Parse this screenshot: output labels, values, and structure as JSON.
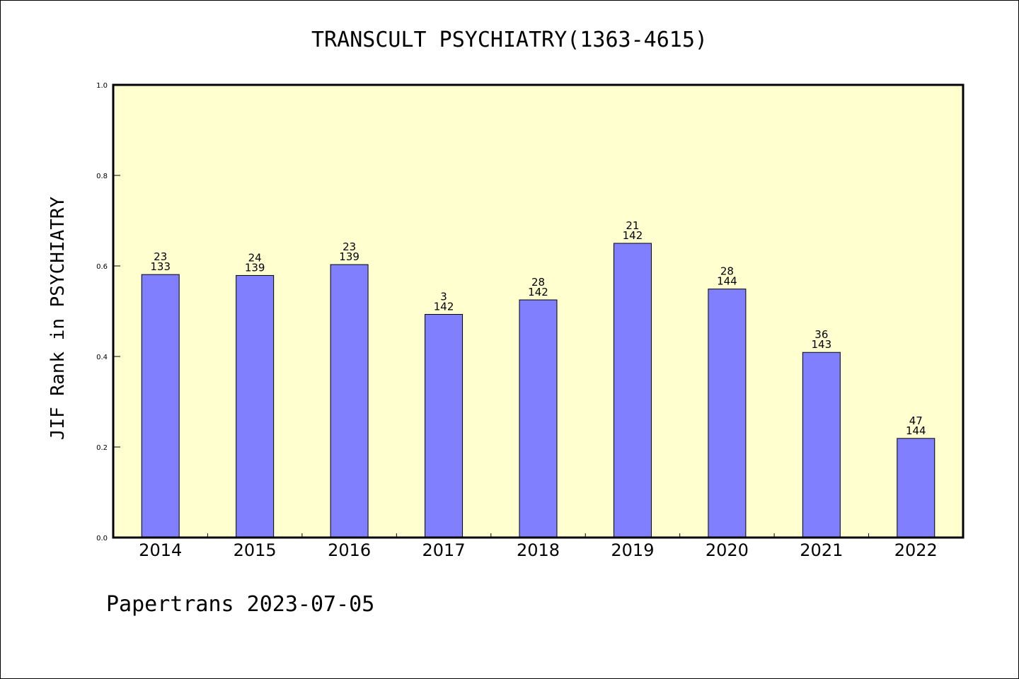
{
  "chart_data": {
    "type": "bar",
    "title": "TRANSCULT PSYCHIATRY(1363-4615)",
    "ylabel": "JIF Rank in PSYCHIATRY",
    "xlabel": "",
    "footer": "Papertrans 2023-07-05",
    "ylim": [
      0,
      1.0
    ],
    "yticks": [
      "0.0",
      "0.2",
      "0.4",
      "0.6",
      "0.8",
      "1.0"
    ],
    "categories": [
      "2014",
      "2015",
      "2016",
      "2017",
      "2018",
      "2019",
      "2020",
      "2021",
      "2022"
    ],
    "values": [
      0.581,
      0.579,
      0.603,
      0.493,
      0.525,
      0.65,
      0.549,
      0.409,
      0.219
    ],
    "rank": [
      "23",
      "24",
      "23",
      "3",
      "28",
      "21",
      "28",
      "36",
      "47"
    ],
    "total": [
      "133",
      "139",
      "139",
      "142",
      "142",
      "142",
      "144",
      "143",
      "144"
    ],
    "colors": {
      "plot_bg": "#ffffd0",
      "bar_fill": "#8080ff",
      "bar_edge": "#000000"
    },
    "grid": false
  }
}
